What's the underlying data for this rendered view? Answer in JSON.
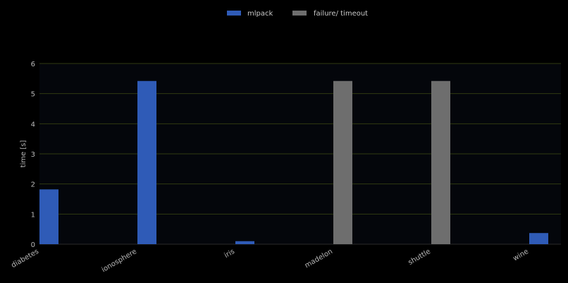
{
  "chart_data": {
    "type": "bar",
    "categories": [
      "diabetes",
      "ionosphere",
      "iris",
      "madelon",
      "shuttle",
      "wine"
    ],
    "series": [
      {
        "name": "mlpack",
        "values": [
          1.82,
          5.42,
          0.1,
          null,
          null,
          0.37
        ],
        "color": "#2f5bb7"
      },
      {
        "name": "failure/ timeout",
        "values": [
          null,
          null,
          null,
          5.42,
          5.42,
          null
        ],
        "color": "#6e6e6e"
      }
    ],
    "xlabel": "",
    "ylabel": "time [s]",
    "ylim": [
      0,
      6
    ],
    "yticks": [
      0,
      1,
      2,
      3,
      4,
      5,
      6
    ],
    "grid": true,
    "grid_color": "#2f3a12",
    "background": "#04060b",
    "legend_position": "top-center"
  }
}
